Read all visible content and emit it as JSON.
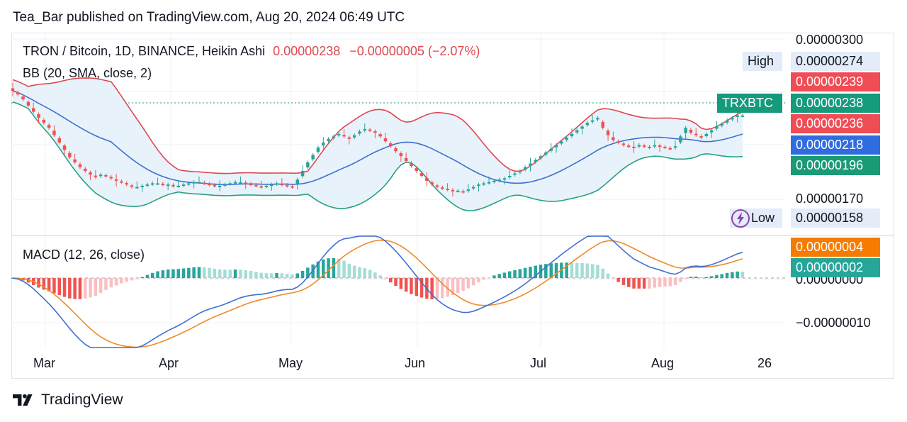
{
  "published": "Tea_Bar published on TradingView.com, Aug 20, 2024 06:49 UTC",
  "legend": {
    "symbol_line": "TRON / Bitcoin, 1D, BINANCE, Heikin Ashi",
    "price": "0.00000238",
    "change": "−0.00000005 (−2.07%)",
    "bb": "BB (20, SMA, close, 2)",
    "macd": "MACD (12, 26, close)"
  },
  "colors": {
    "up": "#26a69a",
    "down": "#ef5350",
    "bb_upper": "#e0474f",
    "bb_basis": "#3f6fd1",
    "bb_lower": "#26a27f",
    "bb_fill": "#e8f2fb",
    "macd_line": "#3f6fd1",
    "signal_line": "#ef8a2a",
    "hist_up_strong": "#26a69a",
    "hist_up_weak": "#a5ddd6",
    "hist_down_strong": "#ef5350",
    "hist_down_weak": "#f9c0c3"
  },
  "labels": {
    "high_label": "High",
    "low_label": "Low",
    "ticker_tag": "TRXBTC",
    "low_icon": "lightning-icon"
  },
  "price_axis": {
    "ticks": [
      "0.00000300",
      "0.00000170"
    ],
    "tags": {
      "high": "0.00000274",
      "bb_upper": "0.00000239",
      "last": "0.00000238",
      "heikin_close": "0.00000236",
      "bb_basis": "0.00000218",
      "bb_lower": "0.00000196",
      "low": "0.00000158"
    }
  },
  "macd_axis": {
    "ticks": [
      "0.00000000",
      "−0.00000010"
    ],
    "tags": {
      "signal": "0.00000004",
      "macd": "0.00000002"
    }
  },
  "time_axis": [
    "Mar",
    "Apr",
    "May",
    "Jun",
    "Jul",
    "Aug",
    "26"
  ],
  "chart_data": {
    "type": "candlestick",
    "scale": "1e-8 BTC (values ×0.00000001)",
    "y_range": [
      147,
      307
    ],
    "macd_range": [
      -13,
      5
    ],
    "monthly_reference_closes": {
      "Mar": 222,
      "Apr": 186,
      "May": 211,
      "Jun": 177,
      "Jul": 210,
      "Aug": 209,
      "Aug19": 238
    },
    "series": [
      {
        "name": "Heikin Ashi close",
        "values": [
          258,
          255,
          251,
          246,
          241,
          236,
          232,
          228,
          222,
          216,
          210,
          204,
          200,
          196,
          193,
          190,
          188,
          190,
          189,
          187,
          185,
          184,
          182,
          180,
          180,
          181,
          182,
          183,
          183,
          182,
          182,
          181,
          181,
          182,
          183,
          184,
          184,
          183,
          182,
          181,
          181,
          182,
          183,
          184,
          184,
          183,
          182,
          181,
          180,
          181,
          182,
          183,
          182,
          181,
          180,
          186,
          193,
          200,
          206,
          212,
          216,
          219,
          221,
          223,
          221,
          219,
          222,
          225,
          227,
          226,
          224,
          221,
          217,
          213,
          209,
          205,
          201,
          197,
          193,
          189,
          185,
          182,
          180,
          179,
          178,
          177,
          177,
          176,
          178,
          180,
          182,
          183,
          184,
          185,
          186,
          187,
          189,
          191,
          193,
          196,
          199,
          202,
          205,
          208,
          211,
          214,
          217,
          220,
          223,
          226,
          229,
          232,
          234,
          236,
          228,
          222,
          218,
          216,
          214,
          213,
          212,
          214,
          213,
          212,
          214,
          213,
          212,
          211,
          213,
          221,
          228,
          224,
          222,
          220,
          223,
          226,
          229,
          231,
          234,
          236,
          238,
          238
        ]
      }
    ]
  }
}
